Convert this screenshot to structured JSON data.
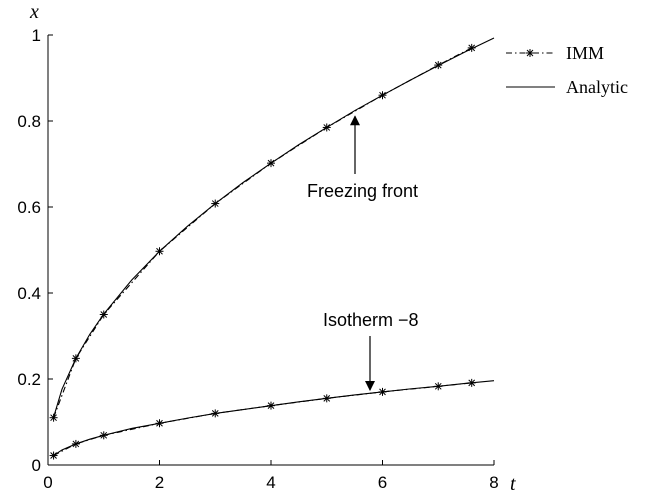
{
  "chart_data": {
    "type": "line",
    "xlabel": "t",
    "ylabel": "x",
    "xlim": [
      0,
      8
    ],
    "ylim": [
      0,
      1
    ],
    "xticks": [
      "0",
      "2",
      "4",
      "6",
      "8"
    ],
    "yticks": [
      "0",
      "0.2",
      "0.4",
      "0.6",
      "0.8",
      "1"
    ],
    "grid": false,
    "legend_position": "top-right",
    "legend": [
      "IMM",
      "Analytic"
    ],
    "series": [
      {
        "name": "IMM",
        "curve": "Freezing front",
        "style": "dash-dot with asterisk markers",
        "x": [
          0.1,
          0.5,
          1,
          2,
          3,
          4,
          5,
          6,
          7,
          7.6
        ],
        "y": [
          0.11,
          0.248,
          0.35,
          0.497,
          0.608,
          0.702,
          0.785,
          0.86,
          0.93,
          0.97
        ]
      },
      {
        "name": "Analytic",
        "curve": "Freezing front",
        "style": "solid",
        "x": [
          0.1,
          0.25,
          0.5,
          0.75,
          1,
          1.5,
          2,
          2.5,
          3,
          3.5,
          4,
          4.5,
          5,
          5.5,
          6,
          6.5,
          7,
          7.5,
          8
        ],
        "y": [
          0.111,
          0.176,
          0.248,
          0.304,
          0.351,
          0.43,
          0.497,
          0.555,
          0.608,
          0.657,
          0.702,
          0.745,
          0.785,
          0.824,
          0.86,
          0.895,
          0.929,
          0.962,
          0.993
        ]
      },
      {
        "name": "IMM",
        "curve": "Isotherm -8",
        "style": "dash-dot with asterisk markers",
        "x": [
          0.1,
          0.5,
          1,
          2,
          3,
          4,
          5,
          6,
          7,
          7.6
        ],
        "y": [
          0.022,
          0.049,
          0.069,
          0.097,
          0.12,
          0.138,
          0.155,
          0.17,
          0.183,
          0.191
        ]
      },
      {
        "name": "Analytic",
        "curve": "Isotherm -8",
        "style": "solid",
        "x": [
          0.1,
          0.25,
          0.5,
          0.75,
          1,
          1.5,
          2,
          2.5,
          3,
          3.5,
          4,
          4.5,
          5,
          5.5,
          6,
          6.5,
          7,
          7.5,
          8
        ],
        "y": [
          0.022,
          0.035,
          0.049,
          0.06,
          0.069,
          0.085,
          0.097,
          0.109,
          0.12,
          0.129,
          0.138,
          0.147,
          0.155,
          0.163,
          0.17,
          0.177,
          0.183,
          0.19,
          0.196
        ]
      }
    ],
    "annotations": [
      {
        "text": "Freezing front",
        "arrow_to": {
          "x": 5.55,
          "y": 0.825
        }
      },
      {
        "text": "Isotherm −8",
        "arrow_to": {
          "x": 5.75,
          "y": 0.165
        }
      }
    ]
  }
}
